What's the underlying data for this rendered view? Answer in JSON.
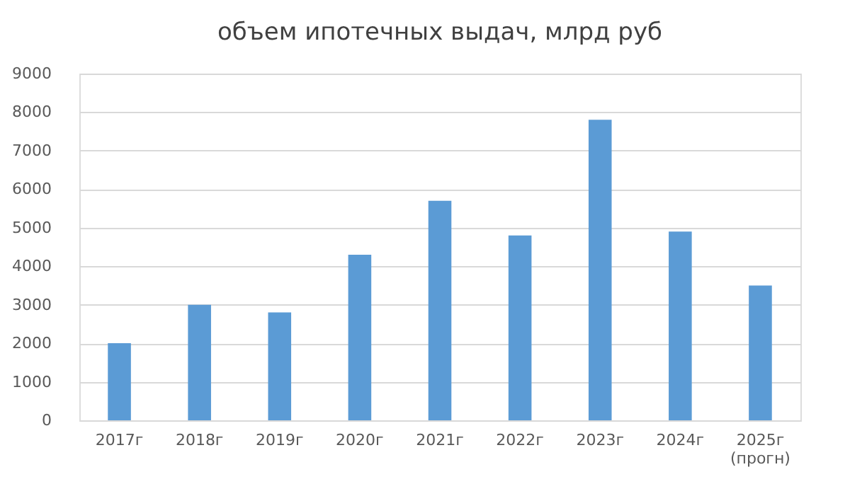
{
  "chart_data": {
    "type": "bar",
    "title": "объем ипотечных выдач, млрд руб",
    "categories": [
      "2017г",
      "2018г",
      "2019г",
      "2020г",
      "2021г",
      "2022г",
      "2023г",
      "2024г",
      "2025г\n(прогн)"
    ],
    "values": [
      2000,
      3000,
      2800,
      4300,
      5700,
      4800,
      7800,
      4900,
      3500
    ],
    "color": "#5b9bd5",
    "ylim": [
      0,
      9000
    ],
    "yticks": [
      0,
      1000,
      2000,
      3000,
      4000,
      5000,
      6000,
      7000,
      8000,
      9000
    ],
    "grid": "y"
  }
}
